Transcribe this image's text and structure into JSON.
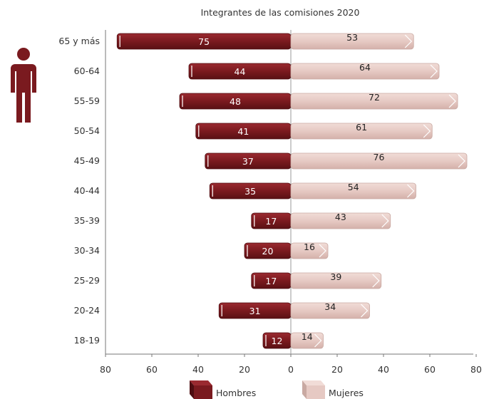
{
  "chart_data": {
    "type": "bar",
    "orientation": "horizontal-population-pyramid",
    "title": "Integrantes de las comisiones 2020",
    "categories": [
      "65 y más",
      "60-64",
      "55-59",
      "50-54",
      "45-49",
      "40-44",
      "35-39",
      "30-34",
      "25-29",
      "20-24",
      "18-19"
    ],
    "series": [
      {
        "name": "Hombres",
        "values": [
          75,
          44,
          48,
          41,
          37,
          35,
          17,
          20,
          17,
          31,
          12
        ],
        "side": "left"
      },
      {
        "name": "Mujeres",
        "values": [
          53,
          64,
          72,
          61,
          76,
          54,
          43,
          16,
          39,
          34,
          14
        ],
        "side": "right"
      }
    ],
    "xlim": [
      -80,
      80
    ],
    "x_ticks": [
      80,
      60,
      40,
      20,
      0,
      20,
      40,
      60,
      80
    ],
    "legend_position": "bottom",
    "grid": false
  },
  "colors": {
    "hombres": "#7a1a1f",
    "hombres_dark": "#4e0d11",
    "mujeres": "#e6c9c3",
    "mujeres_edge": "#c9a9a2",
    "icon": "#7a1a1f",
    "axis": "#555555"
  },
  "icon_name": "person-icon"
}
